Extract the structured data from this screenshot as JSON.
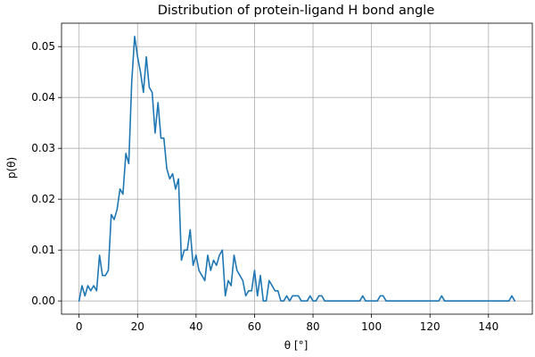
{
  "chart_data": {
    "type": "line",
    "title": "Distribution of protein-ligand H bond angle",
    "xlabel": "θ [°]",
    "ylabel": "p(θ)",
    "xlim": [
      -6,
      155
    ],
    "ylim": [
      -0.0026,
      0.0546
    ],
    "xticks": [
      0,
      20,
      40,
      60,
      80,
      100,
      120,
      140
    ],
    "yticks": [
      0.0,
      0.01,
      0.02,
      0.03,
      0.04,
      0.05
    ],
    "ytick_labels": [
      "0.00",
      "0.01",
      "0.02",
      "0.03",
      "0.04",
      "0.05"
    ],
    "grid": true,
    "color": "#1f77b4",
    "series": [
      {
        "x": [
          0,
          1,
          2,
          3,
          4,
          5,
          6,
          7,
          8,
          9,
          10,
          11,
          12,
          13,
          14,
          15,
          16,
          17,
          18,
          19,
          20,
          21,
          22,
          23,
          24,
          25,
          26,
          27,
          28,
          29,
          30,
          31,
          32,
          33,
          34,
          35,
          36,
          37,
          38,
          39,
          40,
          41,
          42,
          43,
          44,
          45,
          46,
          47,
          48,
          49,
          50,
          51,
          52,
          53,
          54,
          55,
          56,
          57,
          58,
          59,
          60,
          61,
          62,
          63,
          64,
          65,
          66,
          67,
          68,
          69,
          70,
          71,
          72,
          73,
          74,
          75,
          76,
          77,
          78,
          79,
          80,
          81,
          82,
          83,
          84,
          85,
          86,
          87,
          88,
          89,
          90,
          91,
          92,
          93,
          94,
          95,
          96,
          97,
          98,
          99,
          100,
          101,
          102,
          103,
          104,
          105,
          106,
          107,
          108,
          109,
          110,
          111,
          112,
          113,
          114,
          115,
          116,
          117,
          118,
          119,
          120,
          121,
          122,
          123,
          124,
          125,
          126,
          127,
          128,
          129,
          130,
          131,
          132,
          133,
          134,
          135,
          136,
          137,
          138,
          139,
          140,
          141,
          142,
          143,
          144,
          145,
          146,
          147,
          148,
          149
        ],
        "values": [
          0.0,
          0.003,
          0.001,
          0.003,
          0.002,
          0.003,
          0.002,
          0.009,
          0.005,
          0.005,
          0.006,
          0.017,
          0.016,
          0.018,
          0.022,
          0.021,
          0.029,
          0.027,
          0.043,
          0.052,
          0.048,
          0.045,
          0.041,
          0.048,
          0.042,
          0.041,
          0.033,
          0.039,
          0.032,
          0.032,
          0.026,
          0.024,
          0.025,
          0.022,
          0.024,
          0.008,
          0.01,
          0.01,
          0.014,
          0.007,
          0.009,
          0.006,
          0.005,
          0.004,
          0.009,
          0.006,
          0.008,
          0.007,
          0.009,
          0.01,
          0.001,
          0.004,
          0.003,
          0.009,
          0.006,
          0.005,
          0.004,
          0.001,
          0.002,
          0.002,
          0.006,
          0.001,
          0.005,
          0.0,
          0.0,
          0.004,
          0.003,
          0.002,
          0.002,
          0.0,
          0.0,
          0.001,
          0.0,
          0.001,
          0.001,
          0.001,
          0.0,
          0.0,
          0.0,
          0.001,
          0.0,
          0.0,
          0.001,
          0.001,
          0.0,
          0.0,
          0.0,
          0.0,
          0.0,
          0.0,
          0.0,
          0.0,
          0.0,
          0.0,
          0.0,
          0.0,
          0.0,
          0.001,
          0.0,
          0.0,
          0.0,
          0.0,
          0.0,
          0.001,
          0.001,
          0.0,
          0.0,
          0.0,
          0.0,
          0.0,
          0.0,
          0.0,
          0.0,
          0.0,
          0.0,
          0.0,
          0.0,
          0.0,
          0.0,
          0.0,
          0.0,
          0.0,
          0.0,
          0.0,
          0.001,
          0.0,
          0.0,
          0.0,
          0.0,
          0.0,
          0.0,
          0.0,
          0.0,
          0.0,
          0.0,
          0.0,
          0.0,
          0.0,
          0.0,
          0.0,
          0.0,
          0.0,
          0.0,
          0.0,
          0.0,
          0.0,
          0.0,
          0.0,
          0.001,
          0.0
        ]
      }
    ]
  }
}
